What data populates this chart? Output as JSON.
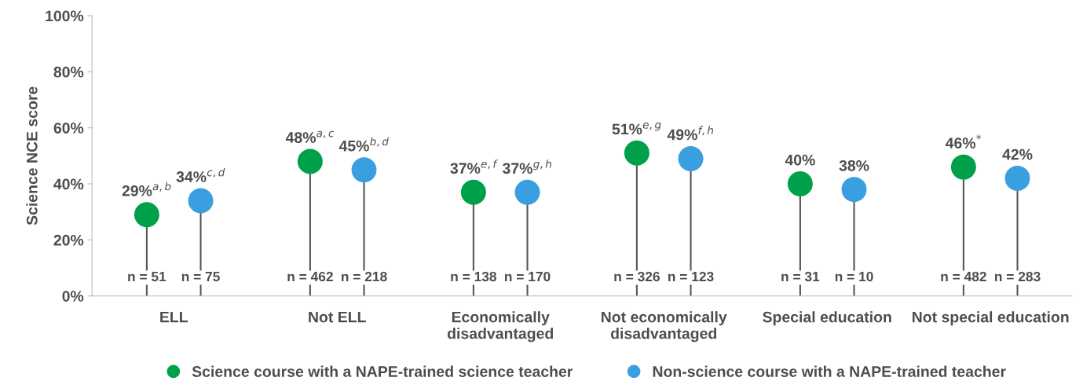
{
  "chart_data": {
    "type": "lollipop",
    "ylabel": "Science NCE score",
    "categories": [
      "ELL",
      "Not ELL",
      "Economically\ndisadvantaged",
      "Not economically\ndisadvantaged",
      "Special education",
      "Not special education"
    ],
    "series": [
      {
        "name": "Science course with a NAPE-trained science teacher",
        "color": "#00a04b",
        "values": [
          29,
          48,
          37,
          51,
          40,
          46
        ],
        "value_labels": [
          "29%$^{a,b}$",
          "48%$^{a,c}$",
          "37%$^{e,f}$",
          "51%$^{e,g}$",
          "40%",
          "46%$^{*}$"
        ]
      },
      {
        "name": "Non-science course with a NAPE-trained teacher",
        "color": "#3a9fe0",
        "values": [
          34,
          45,
          37,
          49,
          38,
          42
        ],
        "value_labels": [
          "34%$^{c,d}$",
          "45%$^{b,d}$",
          "37%$^{g,h}$",
          "49%$^{f,h}$",
          "38%",
          "42%"
        ]
      }
    ],
    "annotations": [
      "n = 51",
      "n = 75",
      "n = 462",
      "n = 218",
      "n = 138",
      "n = 170",
      "n = 326",
      "n = 123",
      "n = 31",
      "n = 10",
      "n = 482",
      "n = 283"
    ],
    "ylim": [
      0,
      100
    ],
    "yticks": [
      {
        "value": 0,
        "label": "0%"
      },
      {
        "value": 20,
        "label": "20%"
      },
      {
        "value": 40,
        "label": "40%"
      },
      {
        "value": 60,
        "label": "60%"
      },
      {
        "value": 80,
        "label": "80%"
      },
      {
        "value": 100,
        "label": "100%"
      }
    ],
    "marker": "circle",
    "legend": "bottom",
    "grid": false
  }
}
